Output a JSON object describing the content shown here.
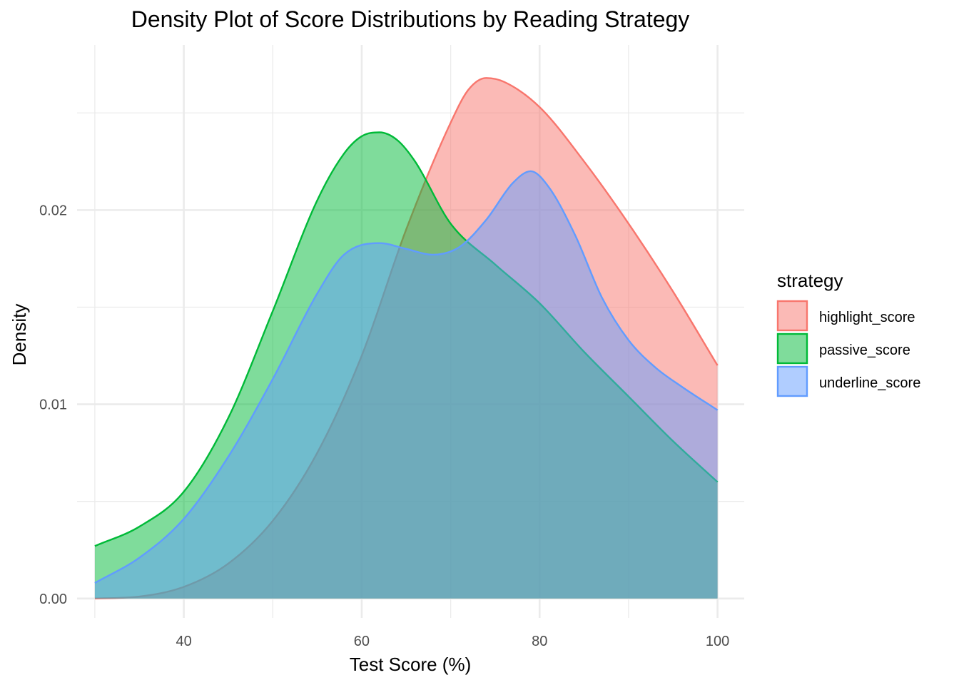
{
  "chart_data": {
    "type": "area",
    "subtype": "density",
    "title": "Density Plot of Score Distributions by Reading Strategy",
    "xlabel": "Test Score (%)",
    "ylabel": "Density",
    "xlim": [
      28,
      103
    ],
    "ylim": [
      -0.001,
      0.0285
    ],
    "x_ticks": [
      40,
      60,
      80,
      100
    ],
    "x_tick_labels": [
      "40",
      "60",
      "80",
      "100"
    ],
    "x_minor_ticks": [
      30,
      50,
      70,
      90
    ],
    "y_ticks": [
      0.0,
      0.01,
      0.02
    ],
    "y_tick_labels": [
      "0.00",
      "0.01",
      "0.02"
    ],
    "y_minor_ticks": [
      0.005,
      0.015,
      0.025
    ],
    "grid": true,
    "fill_opacity": 0.5,
    "legend": {
      "title": "strategy",
      "position": "right"
    },
    "series": [
      {
        "name": "highlight_score",
        "color": "#F8766D",
        "x": [
          30,
          35,
          40,
          45,
          50,
          55,
          60,
          65,
          70,
          72,
          74,
          76,
          80,
          85,
          90,
          95,
          100
        ],
        "y": [
          0.0,
          0.0001,
          0.0006,
          0.0018,
          0.004,
          0.0075,
          0.0125,
          0.019,
          0.0245,
          0.0262,
          0.0268,
          0.0266,
          0.0253,
          0.0225,
          0.0193,
          0.0158,
          0.012
        ]
      },
      {
        "name": "passive_score",
        "color": "#00BA38",
        "x": [
          30,
          35,
          40,
          45,
          50,
          55,
          58,
          60,
          62,
          64,
          66,
          70,
          75,
          80,
          85,
          90,
          95,
          100
        ],
        "y": [
          0.0027,
          0.0037,
          0.0055,
          0.0093,
          0.0148,
          0.0205,
          0.0229,
          0.0238,
          0.024,
          0.0236,
          0.0225,
          0.0193,
          0.0172,
          0.0152,
          0.0127,
          0.0104,
          0.0081,
          0.006
        ]
      },
      {
        "name": "underline_score",
        "color": "#619CFF",
        "x": [
          30,
          35,
          40,
          45,
          50,
          55,
          58,
          62,
          65,
          68,
          71,
          74,
          77,
          79,
          81,
          84,
          87,
          90,
          93,
          96,
          100
        ],
        "y": [
          0.0008,
          0.0021,
          0.0041,
          0.0073,
          0.0113,
          0.0157,
          0.0177,
          0.0183,
          0.018,
          0.0177,
          0.0181,
          0.0195,
          0.0214,
          0.022,
          0.0212,
          0.0187,
          0.0155,
          0.0133,
          0.0119,
          0.0109,
          0.0097
        ]
      }
    ]
  }
}
